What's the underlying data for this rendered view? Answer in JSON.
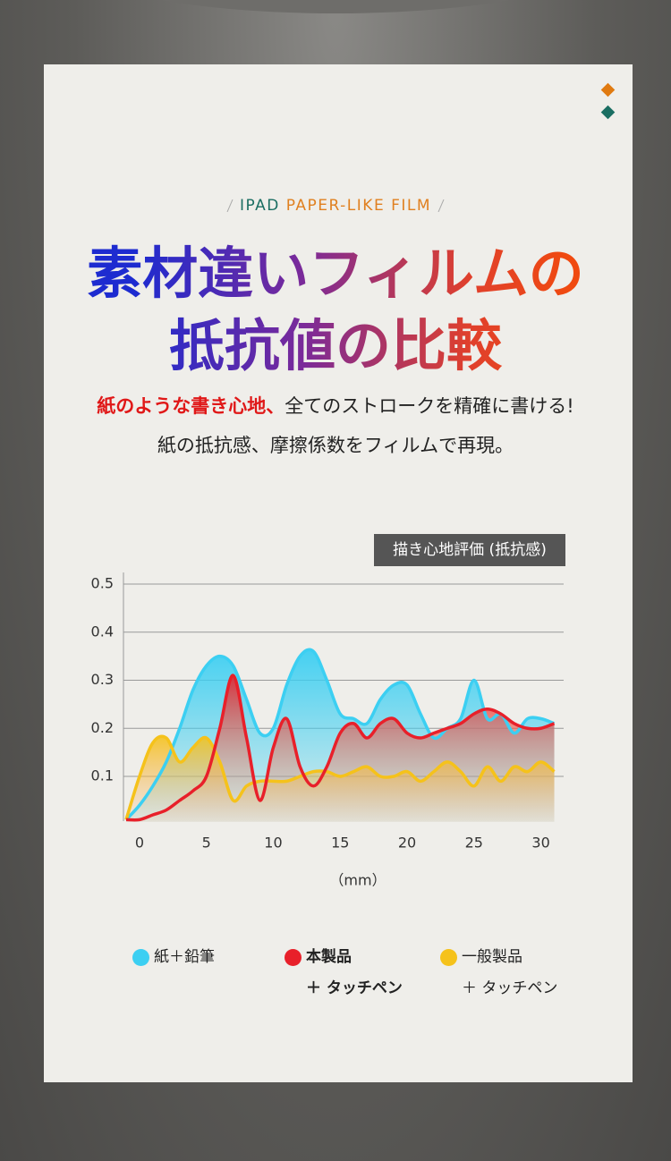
{
  "header": {
    "tagline_prefix": "IPAD",
    "tagline": "PAPER-LIKE FILM",
    "title_lines": [
      "素材違いフィルムの",
      "抵抗値の比較"
    ],
    "lead_highlight": "紙のような書き心地、",
    "lead_rest": "全てのストロークを精確に書ける!",
    "lead_line2": "紙の抵抗感、摩擦係数をフィルムで再現。"
  },
  "chart_data": {
    "type": "area-line",
    "badge": "描き心地評価 (抵抗感)",
    "x_label": "（mm）",
    "x": [
      -1,
      0,
      1,
      2,
      3,
      4,
      5,
      6,
      7,
      8,
      9,
      10,
      11,
      12,
      13,
      14,
      15,
      16,
      17,
      18,
      19,
      20,
      21,
      22,
      23,
      24,
      25,
      26,
      27,
      28,
      29,
      30,
      31
    ],
    "xlim": [
      -1.2,
      31.7
    ],
    "xticks": [
      0,
      5,
      10,
      15,
      20,
      25,
      30
    ],
    "ylim": [
      0,
      0.5
    ],
    "yticks": [
      0.1,
      0.2,
      0.3,
      0.4,
      0.5
    ],
    "grid": true,
    "series": [
      {
        "name": "紙＋鉛筆",
        "color": "#3ccff2",
        "values": [
          0.01,
          0.04,
          0.08,
          0.13,
          0.2,
          0.28,
          0.33,
          0.35,
          0.33,
          0.26,
          0.19,
          0.2,
          0.29,
          0.35,
          0.36,
          0.3,
          0.23,
          0.22,
          0.21,
          0.26,
          0.29,
          0.29,
          0.23,
          0.18,
          0.2,
          0.22,
          0.3,
          0.22,
          0.23,
          0.19,
          0.22,
          0.22,
          0.21
        ]
      },
      {
        "name": "本製品\n＋ タッチペン",
        "color": "#e8202a",
        "values": [
          0.01,
          0.01,
          0.02,
          0.03,
          0.05,
          0.07,
          0.1,
          0.2,
          0.31,
          0.18,
          0.05,
          0.16,
          0.22,
          0.12,
          0.08,
          0.12,
          0.19,
          0.21,
          0.18,
          0.21,
          0.22,
          0.19,
          0.18,
          0.19,
          0.2,
          0.21,
          0.23,
          0.24,
          0.23,
          0.21,
          0.2,
          0.2,
          0.21
        ]
      },
      {
        "name": "一般製品\n＋ タッチペン",
        "color": "#f5c21b",
        "values": [
          0.01,
          0.1,
          0.17,
          0.18,
          0.13,
          0.16,
          0.18,
          0.13,
          0.05,
          0.08,
          0.09,
          0.09,
          0.09,
          0.1,
          0.11,
          0.11,
          0.1,
          0.11,
          0.12,
          0.1,
          0.1,
          0.11,
          0.09,
          0.11,
          0.13,
          0.11,
          0.08,
          0.12,
          0.09,
          0.12,
          0.11,
          0.13,
          0.11
        ]
      }
    ]
  }
}
